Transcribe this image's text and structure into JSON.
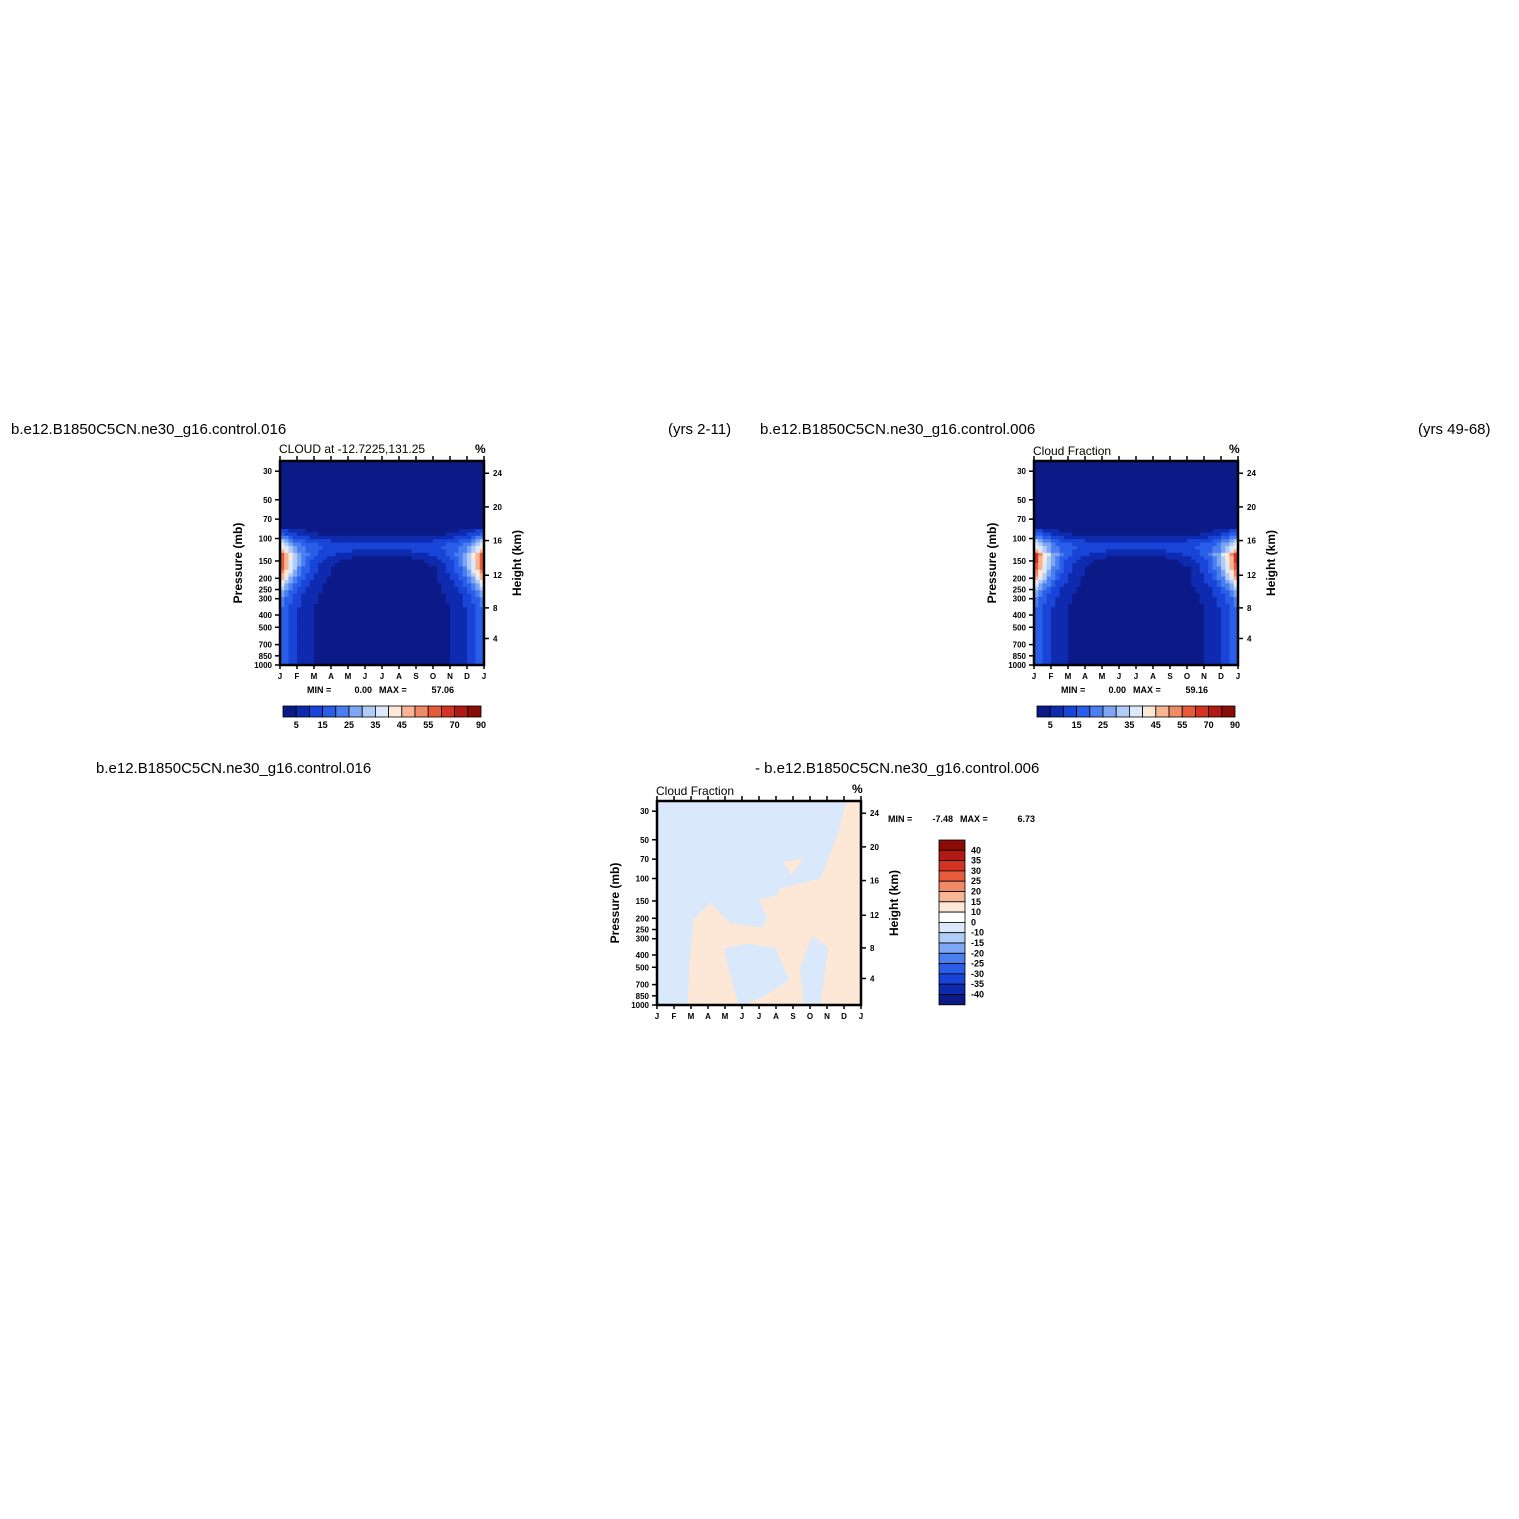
{
  "headers": {
    "top_left_case": "b.e12.B1850C5CN.ne30_g16.control.016",
    "top_left_years": "(yrs 2-11)",
    "top_right_case": "b.e12.B1850C5CN.ne30_g16.control.006",
    "top_right_years": "(yrs 49-68)",
    "bottom_left_case": "b.e12.B1850C5CN.ne30_g16.control.016",
    "bottom_right_case": "- b.e12.B1850C5CN.ne30_g16.control.006"
  },
  "chart_data": [
    {
      "type": "heatmap",
      "title": "CLOUD at -12.7225,131.25",
      "units": "%",
      "ylabel": "Pressure (mb)",
      "y2label": "Height (km)",
      "x_ticks": [
        "J",
        "F",
        "M",
        "A",
        "M",
        "J",
        "J",
        "A",
        "S",
        "O",
        "N",
        "D",
        "J"
      ],
      "y_ticks": [
        "30",
        "50",
        "70",
        "100",
        "150",
        "200",
        "250",
        "300",
        "400",
        "500",
        "700",
        "850",
        "1000"
      ],
      "y2_ticks": [
        "24",
        "20",
        "16",
        "12",
        "8",
        "4"
      ],
      "min_label": "MIN =",
      "min_value": "0.00",
      "max_label": "MAX =",
      "max_value": "57.06",
      "colorbar_labels": [
        "5",
        "15",
        "25",
        "35",
        "45",
        "55",
        "70",
        "90"
      ],
      "colorbar_colors": [
        "#0b1a86",
        "#0e2bb0",
        "#1845d8",
        "#2a5ee9",
        "#4a7ff0",
        "#7ea6f4",
        "#b0ccf8",
        "#dbe9fb",
        "#fde7d6",
        "#f7b594",
        "#f08a66",
        "#e75a3a",
        "#d43222",
        "#b01a12",
        "#8a0c08"
      ],
      "peak_value": 57.06
    },
    {
      "type": "heatmap",
      "title": "Cloud Fraction",
      "units": "%",
      "ylabel": "Pressure (mb)",
      "y2label": "Height (km)",
      "x_ticks": [
        "J",
        "F",
        "M",
        "A",
        "M",
        "J",
        "J",
        "A",
        "S",
        "O",
        "N",
        "D",
        "J"
      ],
      "y_ticks": [
        "30",
        "50",
        "70",
        "100",
        "150",
        "200",
        "250",
        "300",
        "400",
        "500",
        "700",
        "850",
        "1000"
      ],
      "y2_ticks": [
        "24",
        "20",
        "16",
        "12",
        "8",
        "4"
      ],
      "min_label": "MIN =",
      "min_value": "0.00",
      "max_label": "MAX =",
      "max_value": "59.16",
      "colorbar_labels": [
        "5",
        "15",
        "25",
        "35",
        "45",
        "55",
        "70",
        "90"
      ],
      "colorbar_colors": [
        "#0b1a86",
        "#0e2bb0",
        "#1845d8",
        "#2a5ee9",
        "#4a7ff0",
        "#7ea6f4",
        "#b0ccf8",
        "#dbe9fb",
        "#fde7d6",
        "#f7b594",
        "#f08a66",
        "#e75a3a",
        "#d43222",
        "#b01a12",
        "#8a0c08"
      ],
      "peak_value": 59.16
    },
    {
      "type": "heatmap",
      "title": "Cloud Fraction",
      "units": "%",
      "ylabel": "Pressure (mb)",
      "y2label": "Height (km)",
      "x_ticks": [
        "J",
        "F",
        "M",
        "A",
        "M",
        "J",
        "J",
        "A",
        "S",
        "O",
        "N",
        "D",
        "J"
      ],
      "y_ticks": [
        "30",
        "50",
        "70",
        "100",
        "150",
        "200",
        "250",
        "300",
        "400",
        "500",
        "700",
        "850",
        "1000"
      ],
      "y2_ticks": [
        "24",
        "20",
        "16",
        "12",
        "8",
        "4"
      ],
      "min_label": "MIN =",
      "min_value": "-7.48",
      "max_label": "MAX =",
      "max_value": "6.73",
      "colorbar_labels": [
        "40",
        "35",
        "30",
        "25",
        "20",
        "15",
        "10",
        "0",
        "-10",
        "-15",
        "-20",
        "-25",
        "-30",
        "-35",
        "-40"
      ],
      "colorbar_colors": [
        "#8a0c08",
        "#b01a12",
        "#d43222",
        "#e75a3a",
        "#f08a66",
        "#f7b594",
        "#fde7d6",
        "#ffffff",
        "#dbe9fb",
        "#b0ccf8",
        "#7ea6f4",
        "#4a7ff0",
        "#2a5ee9",
        "#1845d8",
        "#0e2bb0",
        "#0b1a86"
      ],
      "diff_colors": {
        "positive": "#fde7d6",
        "negative": "#d9e8fb"
      }
    }
  ]
}
